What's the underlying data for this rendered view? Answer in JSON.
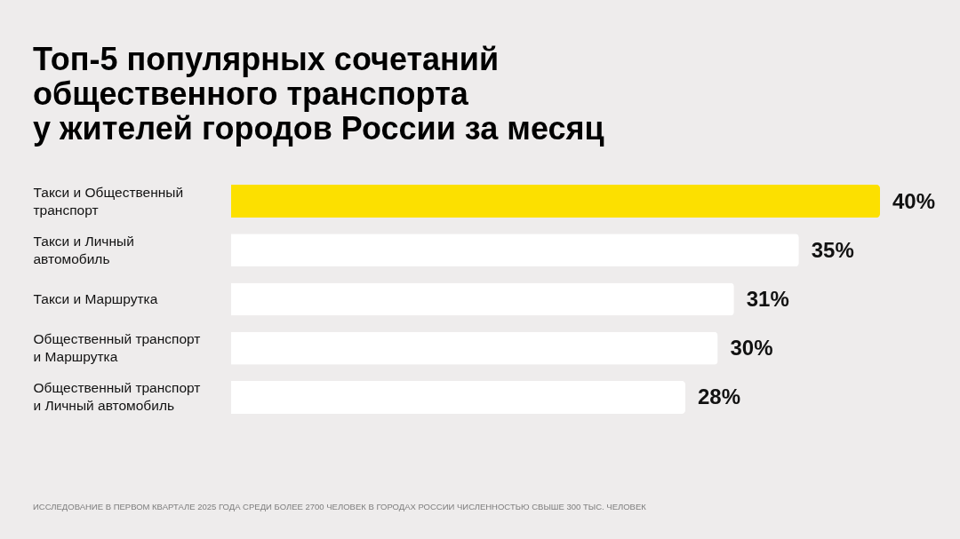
{
  "chart_data": {
    "type": "bar",
    "orientation": "horizontal",
    "title": "Топ-5 популярных сочетаний\nобщественного транспорта\nу жителей городов России за месяц",
    "categories": [
      "Такси и Общественный транспорт",
      "Такси и Личный автомобиль",
      "Такси и Маршрутка",
      "Общественный транспорт и Маршрутка",
      "Общественный транспорт и Личный автомобиль"
    ],
    "values": [
      40,
      35,
      31,
      30,
      28
    ],
    "colors": [
      "#fce000",
      "#ffffff",
      "#ffffff",
      "#ffffff",
      "#ffffff"
    ],
    "value_labels": [
      "40%",
      "35%",
      "31%",
      "30%",
      "28%"
    ],
    "tick_labels": "y",
    "annotations": [
      "ИССЛЕДОВАНИЕ В ПЕРВОМ КВАРТАЛЕ 2025 ГОДА СРЕДИ БОЛЕЕ 2700 ЧЕЛОВЕК В ГОРОДАХ РОССИИ ЧИСЛЕННОСТЬЮ СВЫШЕ 300 ТЫС. ЧЕЛОВЕК"
    ]
  }
}
